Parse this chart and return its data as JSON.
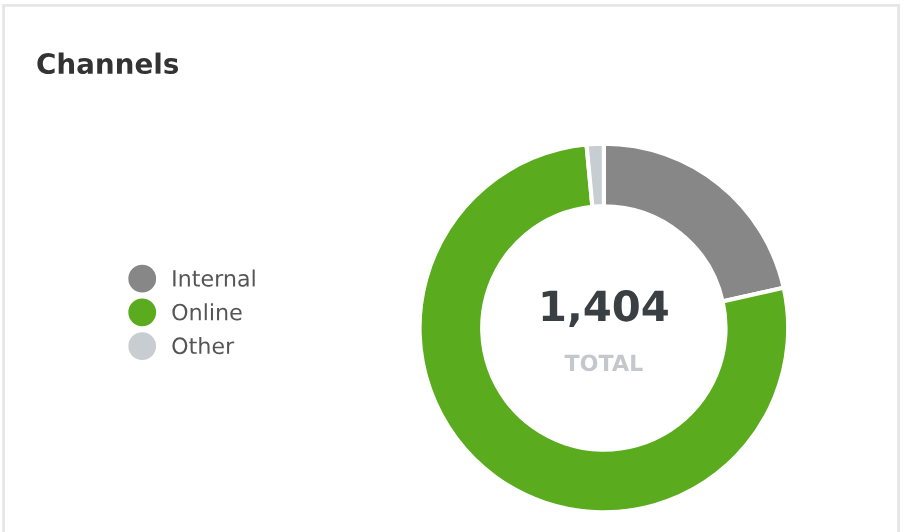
{
  "chart_data": {
    "type": "donut",
    "title": "Channels",
    "categories": [
      "Internal",
      "Online",
      "Other"
    ],
    "values": [
      21.5,
      77,
      1.5
    ],
    "colors": [
      "#878787",
      "#5aab1e",
      "#c8cdd2"
    ],
    "annotations": [
      "1,404",
      "TOTAL"
    ],
    "legend": "left"
  }
}
